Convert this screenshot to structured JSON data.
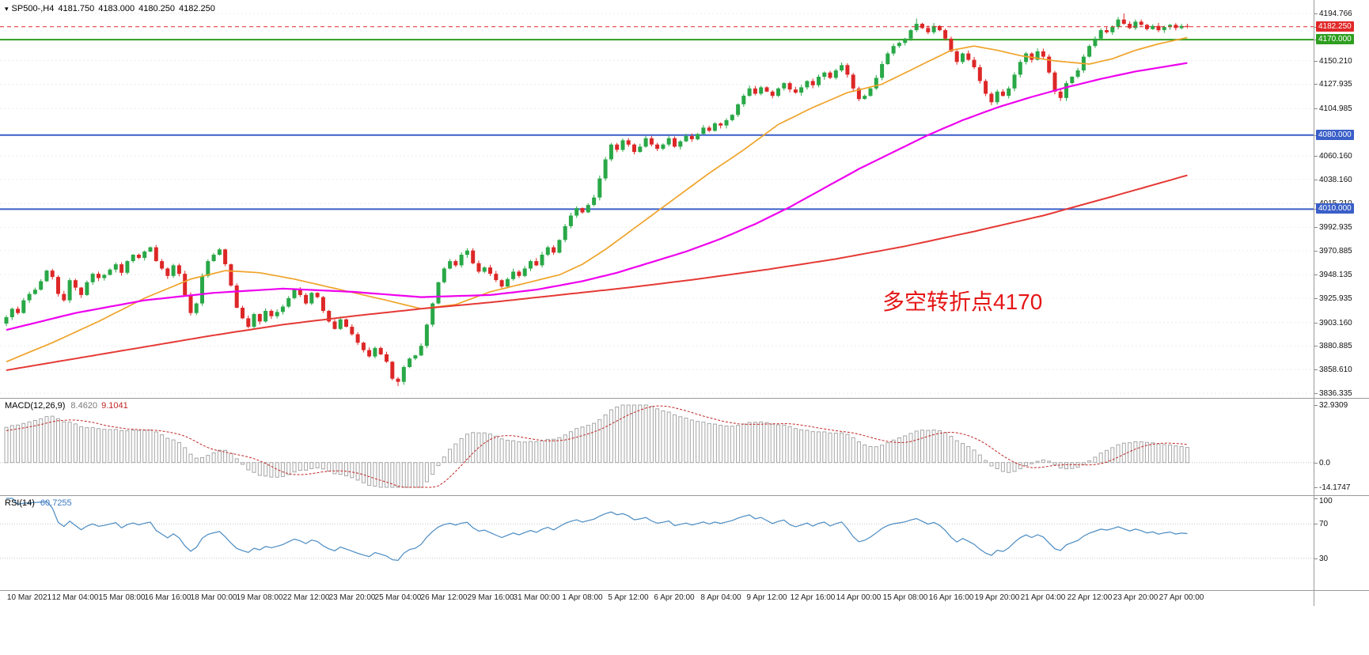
{
  "header": {
    "symbol_period": "SP500-,H4",
    "open": "4181.750",
    "high": "4183.000",
    "low": "4180.250",
    "close": "4182.250"
  },
  "annotation": {
    "text": "多空转折点4170"
  },
  "panels": {
    "macd": {
      "name": "MACD(12,26,9)",
      "main_value": "8.4620",
      "signal_value": "9.1041",
      "axis_labels": [
        "32.9309",
        "0.0",
        "-14.1747"
      ],
      "range": {
        "max": 32.9309,
        "min": -14.1747
      }
    },
    "rsi": {
      "name": "RSI(14)",
      "value": "60.7255",
      "axis_labels": [
        "100",
        "70",
        "30"
      ],
      "axis_values": [
        100,
        70,
        30
      ],
      "levels": [
        70,
        30
      ],
      "range": {
        "max": 100,
        "min": 0
      }
    }
  },
  "price_axis": {
    "ticks": [
      "4194.766",
      "4150.210",
      "4127.935",
      "4104.985",
      "4060.160",
      "4038.160",
      "4015.210",
      "3992.935",
      "3970.885",
      "3948.135",
      "3925.935",
      "3903.160",
      "3880.885",
      "3858.610",
      "3836.335"
    ],
    "tags": [
      {
        "label": "4182.250",
        "price": 4182.25,
        "bg": "#e02828",
        "role": "current-price"
      },
      {
        "label": "4170.000",
        "price": 4170.0,
        "bg": "#2e9e1f",
        "role": "pivot-level"
      },
      {
        "label": "4080.000",
        "price": 4080.0,
        "bg": "#3a5fc8",
        "role": "level"
      },
      {
        "label": "4010.000",
        "price": 4010.0,
        "bg": "#3a5fc8",
        "role": "level"
      }
    ]
  },
  "time_axis": {
    "labels": [
      "10 Mar 2021",
      "12 Mar 04:00",
      "15 Mar 08:00",
      "16 Mar 16:00",
      "18 Mar 00:00",
      "19 Mar 08:00",
      "22 Mar 12:00",
      "23 Mar 20:00",
      "25 Mar 04:00",
      "26 Mar 12:00",
      "29 Mar 16:00",
      "31 Mar 00:00",
      "1 Apr 08:00",
      "5 Apr 12:00",
      "6 Apr 20:00",
      "8 Apr 04:00",
      "9 Apr 12:00",
      "12 Apr 16:00",
      "14 Apr 00:00",
      "15 Apr 08:00",
      "16 Apr 16:00",
      "19 Apr 20:00",
      "21 Apr 04:00",
      "22 Apr 12:00",
      "23 Apr 20:00",
      "27 Apr 00:00"
    ]
  },
  "chart_data": {
    "type": "candlestick",
    "symbol": "SP500-",
    "timeframe": "H4",
    "last_quote": {
      "open": 4181.75,
      "high": 4183.0,
      "low": 4180.25,
      "close": 4182.25
    },
    "price_range": {
      "min": 3836.335,
      "max": 4194.766
    },
    "horizontal_lines": [
      {
        "price": 4170.0,
        "color": "#2e9e1f",
        "style": "solid",
        "width": 2
      },
      {
        "price": 4080.0,
        "color": "#3a5fc8",
        "style": "solid",
        "width": 2
      },
      {
        "price": 4010.0,
        "color": "#3a5fc8",
        "style": "solid",
        "width": 2
      },
      {
        "price": 4182.25,
        "color": "#e02828",
        "style": "dashed",
        "width": 1
      }
    ],
    "candle_colors": {
      "up": "#29a847",
      "down": "#dd2727"
    },
    "first_open": 3902,
    "closes": [
      3908,
      3916,
      3912,
      3924,
      3930,
      3934,
      3942,
      3952,
      3946,
      3930,
      3924,
      3943,
      3936,
      3929,
      3941,
      3949,
      3945,
      3948,
      3953,
      3958,
      3950,
      3961,
      3967,
      3964,
      3970,
      3974,
      3961,
      3954,
      3947,
      3957,
      3949,
      3929,
      3912,
      3921,
      3947,
      3961,
      3967,
      3972,
      3958,
      3938,
      3917,
      3907,
      3899,
      3911,
      3904,
      3914,
      3909,
      3913,
      3918,
      3926,
      3934,
      3929,
      3921,
      3931,
      3927,
      3914,
      3904,
      3897,
      3906,
      3899,
      3892,
      3884,
      3877,
      3871,
      3879,
      3873,
      3866,
      3850,
      3847,
      3861,
      3869,
      3872,
      3881,
      3901,
      3921,
      3941,
      3954,
      3961,
      3957,
      3967,
      3971,
      3959,
      3951,
      3955,
      3949,
      3943,
      3937,
      3944,
      3951,
      3947,
      3954,
      3961,
      3957,
      3967,
      3974,
      3969,
      3981,
      3994,
      4004,
      4011,
      4007,
      4014,
      4021,
      4039,
      4057,
      4071,
      4066,
      4075,
      4071,
      4064,
      4069,
      4077,
      4071,
      4067,
      4071,
      4077,
      4069,
      4074,
      4079,
      4076,
      4081,
      4087,
      4084,
      4091,
      4089,
      4094,
      4099,
      4109,
      4117,
      4124,
      4119,
      4125,
      4121,
      4117,
      4124,
      4129,
      4123,
      4120,
      4125,
      4131,
      4127,
      4135,
      4139,
      4134,
      4141,
      4146,
      4137,
      4124,
      4114,
      4117,
      4124,
      4134,
      4147,
      4157,
      4164,
      4167,
      4171,
      4179,
      4185,
      4181,
      4177,
      4183,
      4179,
      4171,
      4159,
      4149,
      4157,
      4151,
      4144,
      4131,
      4119,
      4111,
      4121,
      4117,
      4124,
      4137,
      4149,
      4157,
      4151,
      4159,
      4154,
      4139,
      4121,
      4115,
      4129,
      4135,
      4141,
      4154,
      4164,
      4171,
      4179,
      4177,
      4182,
      4189,
      4185,
      4181,
      4187,
      4184,
      4180,
      4183,
      4179,
      4182,
      4184,
      4181,
      4183,
      4182.25
    ],
    "wick_overrides": {
      "68": {
        "low": 3843.0
      },
      "158": {
        "high": 4190.0
      },
      "194": {
        "high": 4194.7
      }
    },
    "moving_averages": [
      {
        "name": "fast-ma-orange",
        "color": "#efa32a",
        "width": 1.7,
        "points": [
          [
            0,
            3866
          ],
          [
            8,
            3884
          ],
          [
            16,
            3904
          ],
          [
            24,
            3926
          ],
          [
            32,
            3944
          ],
          [
            38,
            3952
          ],
          [
            44,
            3950
          ],
          [
            50,
            3944
          ],
          [
            58,
            3934
          ],
          [
            66,
            3924
          ],
          [
            72,
            3916
          ],
          [
            78,
            3920
          ],
          [
            84,
            3932
          ],
          [
            90,
            3940
          ],
          [
            96,
            3948
          ],
          [
            100,
            3958
          ],
          [
            104,
            3972
          ],
          [
            110,
            3996
          ],
          [
            116,
            4020
          ],
          [
            122,
            4044
          ],
          [
            128,
            4066
          ],
          [
            134,
            4090
          ],
          [
            140,
            4106
          ],
          [
            146,
            4120
          ],
          [
            152,
            4128
          ],
          [
            158,
            4144
          ],
          [
            164,
            4160
          ],
          [
            168,
            4164
          ],
          [
            172,
            4160
          ],
          [
            176,
            4155
          ],
          [
            182,
            4150
          ],
          [
            188,
            4147
          ],
          [
            192,
            4152
          ],
          [
            196,
            4160
          ],
          [
            200,
            4166
          ],
          [
            205,
            4172
          ]
        ]
      },
      {
        "name": "mid-ma-magenta",
        "color": "#ee00ee",
        "width": 2.2,
        "points": [
          [
            0,
            3896
          ],
          [
            12,
            3912
          ],
          [
            24,
            3924
          ],
          [
            36,
            3931
          ],
          [
            48,
            3935
          ],
          [
            60,
            3932
          ],
          [
            72,
            3927
          ],
          [
            84,
            3929
          ],
          [
            92,
            3934
          ],
          [
            100,
            3942
          ],
          [
            106,
            3950
          ],
          [
            112,
            3960
          ],
          [
            118,
            3970
          ],
          [
            124,
            3982
          ],
          [
            130,
            3996
          ],
          [
            136,
            4012
          ],
          [
            142,
            4030
          ],
          [
            148,
            4048
          ],
          [
            154,
            4064
          ],
          [
            160,
            4080
          ],
          [
            166,
            4094
          ],
          [
            172,
            4106
          ],
          [
            178,
            4116
          ],
          [
            184,
            4125
          ],
          [
            190,
            4133
          ],
          [
            196,
            4140
          ],
          [
            205,
            4148
          ]
        ]
      },
      {
        "name": "slow-ma-red",
        "color": "#e53935",
        "width": 2.0,
        "points": [
          [
            0,
            3858
          ],
          [
            12,
            3869
          ],
          [
            24,
            3880
          ],
          [
            36,
            3891
          ],
          [
            48,
            3901
          ],
          [
            60,
            3909
          ],
          [
            72,
            3916
          ],
          [
            84,
            3922
          ],
          [
            96,
            3929
          ],
          [
            108,
            3936
          ],
          [
            120,
            3944
          ],
          [
            132,
            3953
          ],
          [
            144,
            3963
          ],
          [
            156,
            3975
          ],
          [
            168,
            3989
          ],
          [
            180,
            4004
          ],
          [
            192,
            4022
          ],
          [
            205,
            4042
          ]
        ]
      }
    ],
    "macd": {
      "fast": 12,
      "slow": 26,
      "signal": 9,
      "histogram_color": "#a6a6a6",
      "signal_color": "#c22525"
    },
    "rsi": {
      "period": 14,
      "color": "#4a8bc2"
    }
  }
}
